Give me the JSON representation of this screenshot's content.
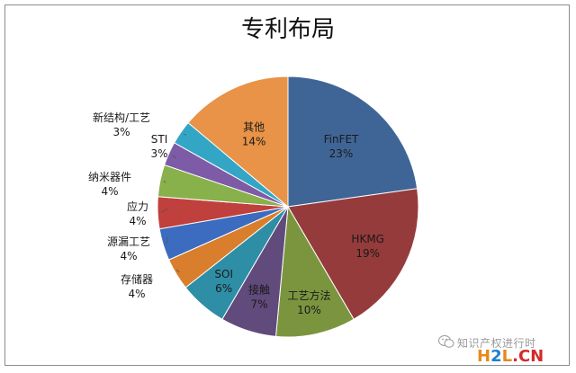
{
  "chart_data": {
    "type": "pie",
    "title": "专利布局",
    "start": "12 o'clock",
    "direction": "clockwise",
    "slices": [
      {
        "name": "FinFET",
        "pct_label": "23%",
        "value": 23,
        "color": "#3F6596"
      },
      {
        "name": "HKMG",
        "pct_label": "19%",
        "value": 19,
        "color": "#953B3B"
      },
      {
        "name": "工艺方法",
        "pct_label": "10%",
        "value": 10,
        "color": "#7B953F"
      },
      {
        "name": "接触",
        "pct_label": "7%",
        "value": 7,
        "color": "#614A7C"
      },
      {
        "name": "SOI",
        "pct_label": "6%",
        "value": 6,
        "color": "#2E8EA6"
      },
      {
        "name": "存储器",
        "pct_label": "4%",
        "value": 4,
        "color": "#D97E2C"
      },
      {
        "name": "源漏工艺",
        "pct_label": "4%",
        "value": 4,
        "color": "#3C6CC0"
      },
      {
        "name": "应力",
        "pct_label": "4%",
        "value": 4,
        "color": "#C0403E"
      },
      {
        "name": "纳米器件",
        "pct_label": "4%",
        "value": 4,
        "color": "#88B04B"
      },
      {
        "name": "STI",
        "pct_label": "3%",
        "value": 3,
        "color": "#7D5BA6"
      },
      {
        "name": "新结构/工艺",
        "pct_label": "3%",
        "value": 3,
        "color": "#33A6C6"
      },
      {
        "name": "其他",
        "pct_label": "14%",
        "value": 14,
        "color": "#E89347"
      }
    ]
  },
  "watermark": {
    "text": "知识产权进行时",
    "brand_h": "H",
    "brand_2": "2",
    "brand_l": "L",
    "brand_dot": ".",
    "brand_cn": "CN"
  }
}
